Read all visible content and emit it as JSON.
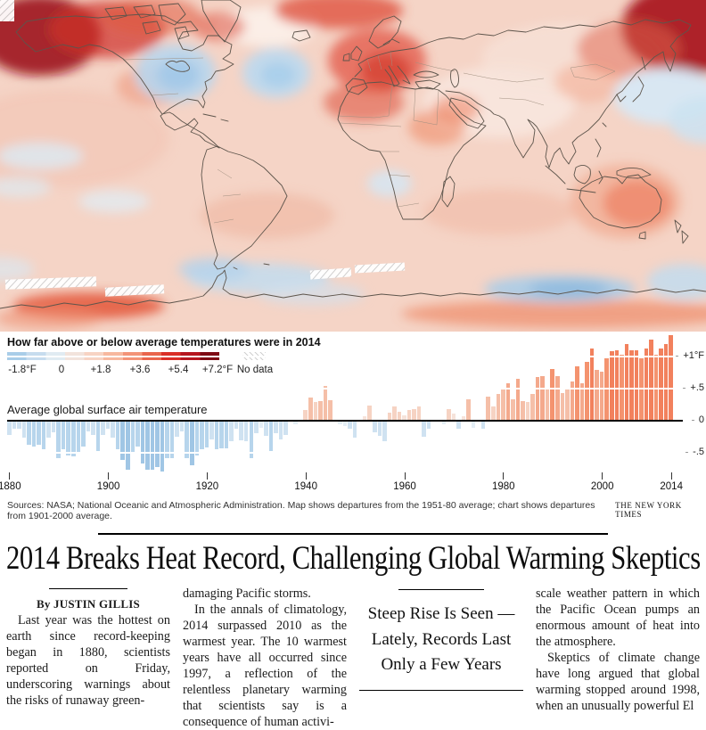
{
  "map": {
    "legend_title": "How far above or below average temperatures were in 2014",
    "scale_labels": [
      "-1.8°F",
      "0",
      "+1.8",
      "+3.6",
      "+5.4",
      "+7.2°F"
    ],
    "no_data_label": "No data",
    "colorbar_colors": [
      "#a9cde8",
      "#c6dcee",
      "#e0ebf2",
      "#f2e3dc",
      "#f7d3c3",
      "#f7b89f",
      "#f39478",
      "#e9654c",
      "#da2f27",
      "#b5161f",
      "#7e0b14"
    ]
  },
  "chart_data": {
    "type": "bar",
    "title": "Average global surface air temperature",
    "unit": "°F",
    "x_start": 1880,
    "x_end": 2014,
    "x_ticks": [
      1880,
      1900,
      1920,
      1940,
      1960,
      1980,
      2000,
      2014
    ],
    "y_ticks": [
      {
        "label": "+1°F",
        "value": 1
      },
      {
        "label": "+.5",
        "value": 0.5
      },
      {
        "label": "0",
        "value": 0
      },
      {
        "label": "-.5",
        "value": -0.5
      }
    ],
    "ylim": [
      -0.85,
      1.35
    ],
    "values": [
      -0.22,
      -0.13,
      -0.13,
      -0.27,
      -0.38,
      -0.4,
      -0.38,
      -0.45,
      -0.27,
      -0.18,
      -0.59,
      -0.45,
      -0.54,
      -0.56,
      -0.5,
      -0.4,
      -0.16,
      -0.22,
      -0.47,
      -0.22,
      -0.13,
      -0.27,
      -0.45,
      -0.61,
      -0.76,
      -0.52,
      -0.4,
      -0.67,
      -0.77,
      -0.77,
      -0.72,
      -0.79,
      -0.59,
      -0.58,
      -0.25,
      -0.16,
      -0.58,
      -0.7,
      -0.54,
      -0.45,
      -0.41,
      -0.29,
      -0.45,
      -0.43,
      -0.43,
      -0.32,
      -0.13,
      -0.31,
      -0.32,
      -0.59,
      -0.2,
      -0.11,
      -0.23,
      -0.47,
      -0.2,
      -0.29,
      -0.22,
      -0.02,
      -0.05,
      -0.02,
      0.16,
      0.36,
      0.29,
      0.31,
      0.54,
      0.32,
      -0.02,
      -0.05,
      -0.09,
      -0.13,
      -0.27,
      0.0,
      0.07,
      0.23,
      -0.18,
      -0.23,
      -0.32,
      0.13,
      0.22,
      0.14,
      0.09,
      0.16,
      0.18,
      0.22,
      -0.25,
      -0.13,
      -0.02,
      0.0,
      -0.05,
      0.18,
      0.11,
      -0.13,
      0.07,
      0.34,
      -0.11,
      0.02,
      -0.13,
      0.38,
      0.22,
      0.41,
      0.5,
      0.58,
      0.34,
      0.65,
      0.31,
      0.29,
      0.41,
      0.68,
      0.7,
      0.52,
      0.81,
      0.7,
      0.43,
      0.5,
      0.61,
      0.85,
      0.58,
      0.92,
      1.13,
      0.79,
      0.76,
      0.97,
      1.08,
      1.1,
      1.03,
      1.19,
      1.1,
      1.1,
      0.97,
      1.13,
      1.26,
      1.03,
      1.12,
      1.19,
      1.33
    ],
    "bar_colors": {
      "pos": [
        "#f6e3da",
        "#f6d3c3",
        "#f5bfa8",
        "#f4a98c",
        "#f4936f",
        "#f2815d"
      ],
      "pos_breaks": [
        0.12,
        0.3,
        0.55,
        0.8,
        1.05
      ],
      "neg": [
        "#e4eef6",
        "#cfe2f1",
        "#b7d5ec",
        "#a0c6e5"
      ],
      "neg_breaks": [
        -0.12,
        -0.35,
        -0.6
      ]
    }
  },
  "credits": {
    "sources": "Sources: NASA; National Oceanic and Atmospheric Administration. Map shows departures from the 1951-80 average; chart shows departures from 1901-2000 average.",
    "outlet": "THE NEW YORK TIMES"
  },
  "article": {
    "headline": "2014 Breaks Heat Record, Challenging Global Warming Skeptics",
    "byline": "By JUSTIN GILLIS",
    "pull_quote": {
      "lines": [
        "Steep Rise Is Seen —",
        "Lately, Records Last",
        "Only a Few Years"
      ]
    },
    "columns": {
      "col1": [
        "Last year was the hottest on earth since record-keeping began in 1880, scientists reported on Friday, underscoring warnings about the risks of runaway green-"
      ],
      "col2": [
        "damaging Pacific storms.",
        "In the annals of climatology, 2014 surpassed 2010 as the warmest year. The 10 warmest years have all occurred since 1997, a reflection of the relentless planetary warming that scientists say is a consequence of human activi-"
      ],
      "col4": [
        "scale weather pattern in which the Pacific Ocean pumps an enormous amount of heat into the atmosphere.",
        "Skeptics of climate change have long argued that global warming stopped around 1998, when an unusually powerful El"
      ]
    }
  }
}
